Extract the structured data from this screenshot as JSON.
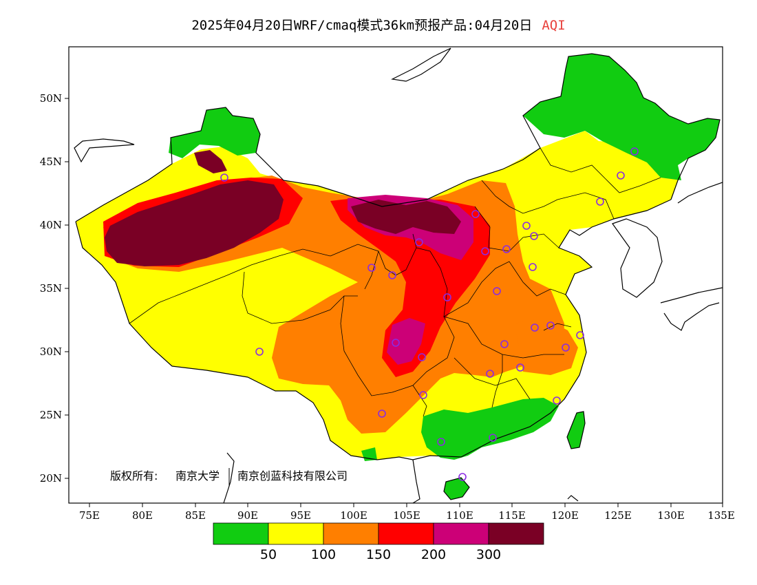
{
  "title": {
    "main": "2025年04月20日WRF/cmaq模式36km预报产品:04月20日",
    "product": "AQI"
  },
  "axes": {
    "lat_labels": [
      "50N",
      "45N",
      "40N",
      "35N",
      "30N",
      "25N",
      "20N"
    ],
    "lon_labels": [
      "75E",
      "80E",
      "85E",
      "90E",
      "95E",
      "100E",
      "105E",
      "110E",
      "115E",
      "120E",
      "125E",
      "130E",
      "135E"
    ]
  },
  "copyright": {
    "label": "版权所有:",
    "org1": "南京大学",
    "org2": "南京创蓝科技有限公司"
  },
  "colorbar": {
    "colors": [
      "#11cc11",
      "#ffff00",
      "#ff7f00",
      "#ff0000",
      "#cc0077",
      "#7a0025"
    ],
    "labels": [
      "50",
      "100",
      "150",
      "200",
      "300"
    ]
  }
}
